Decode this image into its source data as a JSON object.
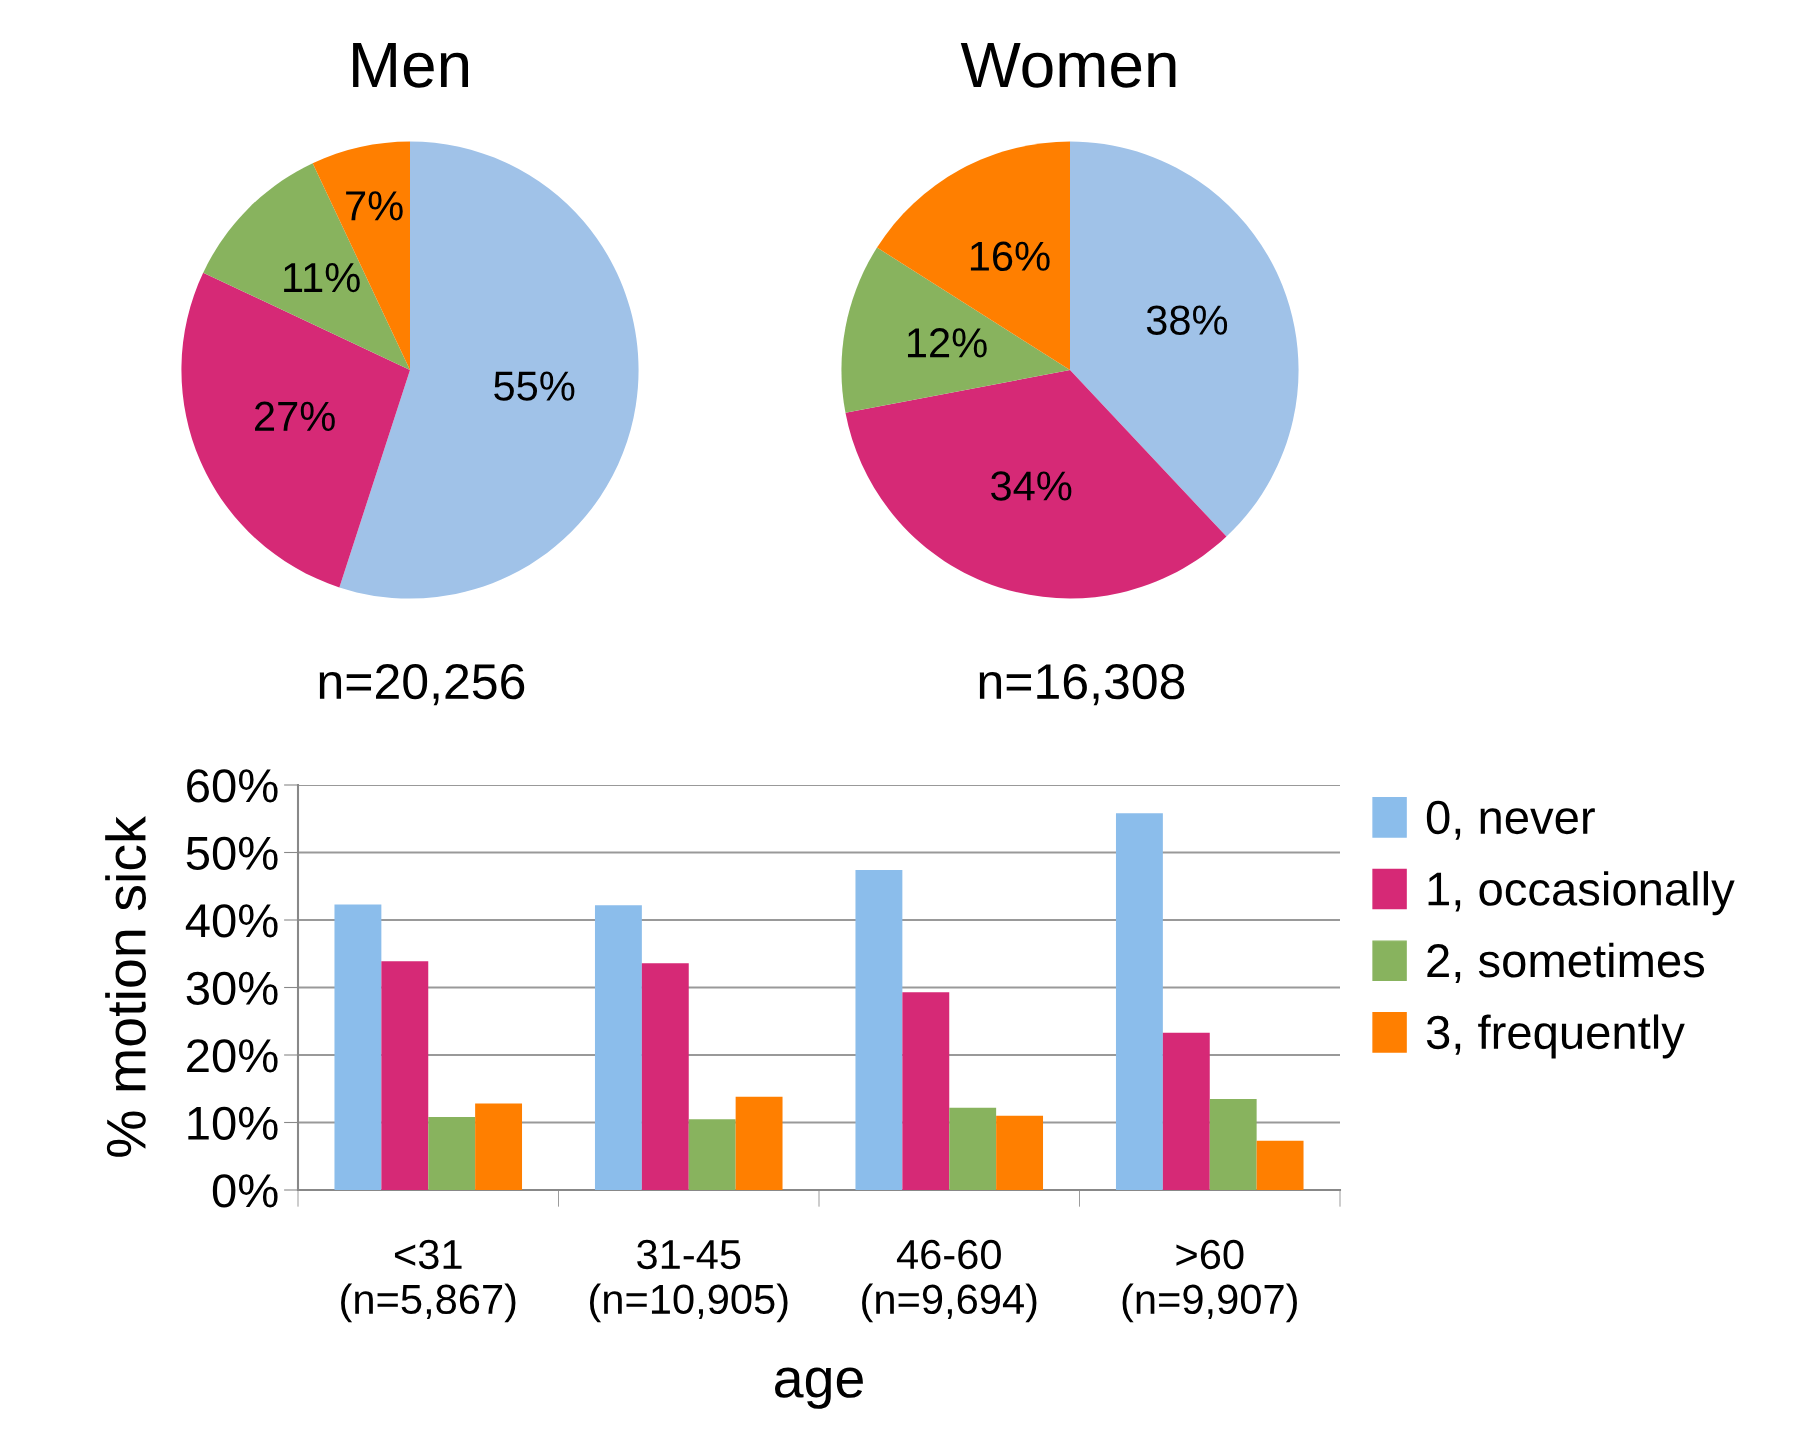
{
  "chart_data": [
    {
      "type": "pie",
      "title": "Men",
      "categories": [
        null,
        null,
        null,
        null
      ],
      "values": [
        55,
        27,
        11,
        7
      ],
      "value_labels": [
        "55%",
        "27%",
        "11%",
        "7%"
      ],
      "colors": [
        "#a0c2e8",
        "#d62976",
        "#88b35e",
        "#ff7f00"
      ],
      "annotations": [
        "n=20,256"
      ],
      "legend": false
    },
    {
      "type": "pie",
      "title": "Women",
      "categories": [
        null,
        null,
        null,
        null
      ],
      "values": [
        38,
        34,
        12,
        16
      ],
      "value_labels": [
        "38%",
        "34%",
        "12%",
        "16%"
      ],
      "colors": [
        "#a0c2e8",
        "#d62976",
        "#88b35e",
        "#ff7f00"
      ],
      "annotations": [
        "n=16,308"
      ],
      "legend": false
    },
    {
      "type": "bar",
      "xlabel": "age",
      "ylabel": "% motion sick",
      "categories": [
        "<31\n(n=5,867)",
        "31-45\n(n=10,905)",
        "46-60\n(n=9,694)",
        ">60\n(n=9,907)"
      ],
      "series": [
        {
          "name": "0, never",
          "color": "#8bbdeb",
          "values": [
            42.3,
            42.2,
            47.4,
            55.8
          ]
        },
        {
          "name": "1, occasionally",
          "color": "#d62976",
          "values": [
            33.9,
            33.6,
            29.3,
            23.3
          ]
        },
        {
          "name": "2, sometimes",
          "color": "#88b35e",
          "values": [
            10.8,
            10.5,
            12.2,
            13.5
          ]
        },
        {
          "name": "3, frequently",
          "color": "#ff7f00",
          "values": [
            12.8,
            13.8,
            11.0,
            7.3
          ]
        }
      ],
      "ylim": [
        0,
        60
      ],
      "yticks": [
        {
          "value": 0,
          "label": "0%"
        },
        {
          "value": 10,
          "label": "10%"
        },
        {
          "value": 20,
          "label": "20%"
        },
        {
          "value": 30,
          "label": "30%"
        },
        {
          "value": 40,
          "label": "40%"
        },
        {
          "value": 50,
          "label": "50%"
        },
        {
          "value": 60,
          "label": "60%"
        }
      ],
      "grid": "y",
      "legend": "right"
    }
  ]
}
